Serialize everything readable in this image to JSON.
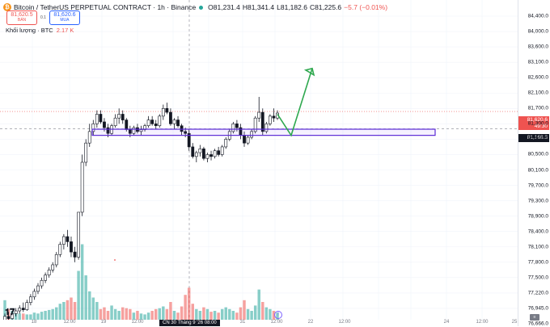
{
  "header": {
    "symbol": "Bitcoin / TetherUS PERPETUAL CONTRACT · 1h · Binance",
    "ohlc": {
      "open": "O81,231.4",
      "high": "H81,341.4",
      "low": "L81,182.6",
      "close": "C81,225.6",
      "change": "−5.7 (−0.01%)"
    }
  },
  "trade": {
    "sell_price": "81,620.5",
    "sell_label": "BÁN",
    "spread": "0.1",
    "buy_price": "81,620.6",
    "buy_label": "MUA"
  },
  "volume_legend": {
    "label": "Khối lượng · BTC",
    "value": "2.17 K"
  },
  "price_axis": {
    "labels": [
      "84,400.0",
      "84,000.0",
      "83,600.0",
      "83,100.0",
      "82,600.0",
      "82,100.0",
      "81,700.0",
      "81,300.0",
      "80,900.0",
      "80,500.0",
      "80,100.0",
      "79,700.0",
      "79,300.0",
      "78,900.0",
      "78,400.0",
      "78,100.0",
      "77,800.0",
      "77,500.0",
      "77,220.0",
      "76,945.0",
      "76,666.0"
    ],
    "last_price": "81,620.6",
    "countdown": "49:30",
    "crosshair_price": "81,168.3"
  },
  "time_axis": {
    "labels": [
      "18",
      "12:00",
      "19",
      "12:00",
      "31",
      "12:00",
      "22",
      "12:00",
      "24",
      "12:00",
      "25"
    ],
    "crosshair": "CN 30 Tháng 9 '26  08:00"
  },
  "colors": {
    "up": "#26a69a",
    "down": "#ef5350",
    "zone": "#5b2bd6",
    "arrow": "#2fa84f"
  },
  "icons": [
    "bitcoin-icon",
    "tradingview-logo-icon",
    "alert-icon"
  ],
  "chart_data": {
    "type": "candlestick",
    "xlabel": "",
    "ylabel": "",
    "ylim": [
      76600,
      84600
    ],
    "zone": {
      "low": 81000,
      "high": 81160
    },
    "projection": [
      [
        81210,
        81550
      ],
      [
        81580,
        81000
      ],
      [
        81600,
        82900
      ]
    ],
    "candles": [
      [
        76700,
        76850,
        76650,
        76800
      ],
      [
        76800,
        76880,
        76700,
        76760
      ],
      [
        76760,
        76900,
        76700,
        76850
      ],
      [
        76850,
        76950,
        76800,
        76900
      ],
      [
        76900,
        77000,
        76850,
        76950
      ],
      [
        76950,
        77050,
        76880,
        76920
      ],
      [
        76920,
        77100,
        76900,
        77050
      ],
      [
        77050,
        77200,
        77000,
        77150
      ],
      [
        77150,
        77300,
        77100,
        77250
      ],
      [
        77250,
        77400,
        77200,
        77350
      ],
      [
        77350,
        77500,
        77300,
        77450
      ],
      [
        77450,
        77600,
        77400,
        77550
      ],
      [
        77550,
        77700,
        77500,
        77650
      ],
      [
        77650,
        77800,
        77600,
        77750
      ],
      [
        77750,
        78000,
        77700,
        77950
      ],
      [
        77950,
        78200,
        77900,
        78150
      ],
      [
        78150,
        78350,
        78050,
        78300
      ],
      [
        78300,
        78450,
        78100,
        78200
      ],
      [
        78200,
        78300,
        77900,
        78000
      ],
      [
        78000,
        78100,
        77800,
        77900
      ],
      [
        77900,
        79000,
        77850,
        79000
      ],
      [
        79000,
        80500,
        78900,
        80300
      ],
      [
        80300,
        80900,
        80200,
        80800
      ],
      [
        80800,
        81300,
        80700,
        81100
      ],
      [
        81100,
        81400,
        81000,
        81300
      ],
      [
        81300,
        81650,
        81200,
        81550
      ],
      [
        81550,
        81650,
        81300,
        81350
      ],
      [
        81350,
        81450,
        81100,
        81200
      ],
      [
        81200,
        81300,
        80950,
        81050
      ],
      [
        81050,
        81300,
        81000,
        81250
      ],
      [
        81250,
        81550,
        81200,
        81450
      ],
      [
        81450,
        81700,
        81300,
        81550
      ],
      [
        81550,
        81650,
        81300,
        81400
      ],
      [
        81400,
        81450,
        81100,
        81150
      ],
      [
        81150,
        81250,
        80950,
        81050
      ],
      [
        81050,
        81250,
        81000,
        81200
      ],
      [
        81200,
        81300,
        81050,
        81100
      ],
      [
        81100,
        81250,
        81000,
        81150
      ],
      [
        81150,
        81300,
        81100,
        81250
      ],
      [
        81250,
        81500,
        81200,
        81400
      ],
      [
        81400,
        81500,
        81250,
        81300
      ],
      [
        81300,
        81400,
        81150,
        81250
      ],
      [
        81250,
        81550,
        81200,
        81500
      ],
      [
        81500,
        81800,
        81400,
        81700
      ],
      [
        81700,
        81850,
        81550,
        81600
      ],
      [
        81600,
        81700,
        81250,
        81300
      ],
      [
        81300,
        81450,
        81150,
        81400
      ],
      [
        81400,
        81500,
        81200,
        81250
      ],
      [
        81250,
        81300,
        81000,
        81100
      ],
      [
        81100,
        81200,
        80950,
        81050
      ],
      [
        81050,
        81150,
        80600,
        80700
      ],
      [
        80700,
        80800,
        80400,
        80450
      ],
      [
        80450,
        80600,
        80300,
        80550
      ],
      [
        80550,
        80750,
        80450,
        80650
      ],
      [
        80650,
        80700,
        80350,
        80400
      ],
      [
        80400,
        80550,
        80300,
        80500
      ],
      [
        80500,
        80600,
        80350,
        80450
      ],
      [
        80450,
        80650,
        80400,
        80600
      ],
      [
        80600,
        80700,
        80450,
        80500
      ],
      [
        80500,
        80750,
        80450,
        80700
      ],
      [
        80700,
        80950,
        80650,
        80900
      ],
      [
        80900,
        81150,
        80850,
        81100
      ],
      [
        81100,
        81350,
        81050,
        81300
      ],
      [
        81300,
        81400,
        81100,
        81200
      ],
      [
        81200,
        81300,
        80900,
        81000
      ],
      [
        81000,
        81100,
        80700,
        80800
      ],
      [
        80800,
        81000,
        80750,
        80950
      ],
      [
        80950,
        81150,
        80900,
        81100
      ],
      [
        81100,
        81500,
        81050,
        81450
      ],
      [
        81450,
        82000,
        81350,
        81600
      ],
      [
        81600,
        81700,
        81000,
        81100
      ],
      [
        81100,
        81350,
        81050,
        81300
      ],
      [
        81300,
        81550,
        81250,
        81500
      ],
      [
        81500,
        81700,
        81350,
        81450
      ],
      [
        81450,
        81650,
        81400,
        81580
      ]
    ],
    "volume": [
      0.22,
      0.12,
      0.1,
      0.08,
      0.07,
      0.07,
      0.06,
      0.06,
      0.08,
      0.07,
      0.09,
      0.1,
      0.11,
      0.12,
      0.14,
      0.18,
      0.2,
      0.22,
      0.25,
      0.2,
      0.55,
      0.85,
      0.5,
      0.32,
      0.25,
      0.2,
      0.12,
      0.14,
      0.1,
      0.16,
      0.12,
      0.1,
      0.14,
      0.13,
      0.12,
      0.08,
      0.1,
      0.07,
      0.06,
      0.08,
      0.1,
      0.12,
      0.13,
      0.15,
      0.12,
      0.2,
      0.1,
      0.08,
      0.15,
      0.28,
      0.36,
      0.18,
      0.12,
      0.1,
      0.14,
      0.12,
      0.09,
      0.1,
      0.08,
      0.12,
      0.14,
      0.12,
      0.1,
      0.08,
      0.14,
      0.22,
      0.12,
      0.1,
      0.16,
      0.34,
      0.2,
      0.14,
      0.12,
      0.1,
      0.08
    ]
  }
}
